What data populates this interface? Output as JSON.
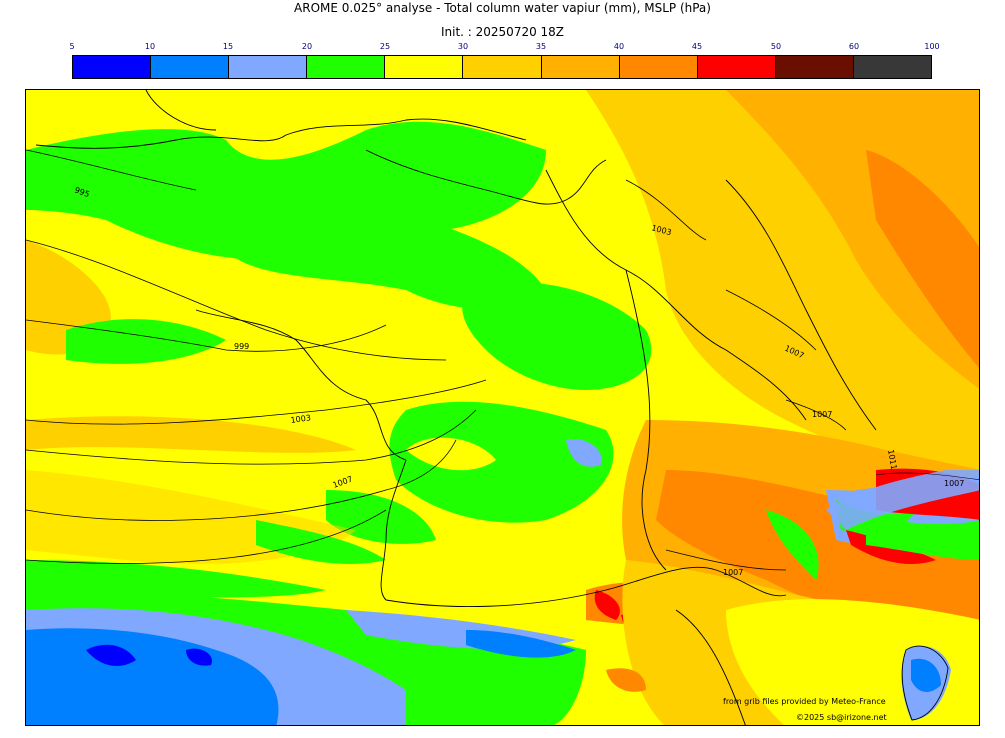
{
  "title": "AROME 0.025° analyse - Total column water vapiur (mm), MSLP (hPa)",
  "init": "Init. : 20250720 18Z",
  "scale": {
    "ticks": [
      "5",
      "10",
      "15",
      "20",
      "25",
      "30",
      "35",
      "40",
      "45",
      "50",
      "60",
      "100"
    ],
    "colors": [
      "#0000ff",
      "#0080ff",
      "#80a8ff",
      "#20ff00",
      "#ffff00",
      "#ffd000",
      "#ffb000",
      "#ff8800",
      "#ff0000",
      "#6a0f00",
      "#383838"
    ]
  },
  "isobars": [
    "995",
    "999",
    "1003",
    "1007",
    "1003",
    "1007",
    "1007",
    "1011",
    "1007",
    "1007"
  ],
  "credits": {
    "source": "from grib files provided by Meteo-France",
    "copyright": "©2025 sb@irizone.net"
  }
}
